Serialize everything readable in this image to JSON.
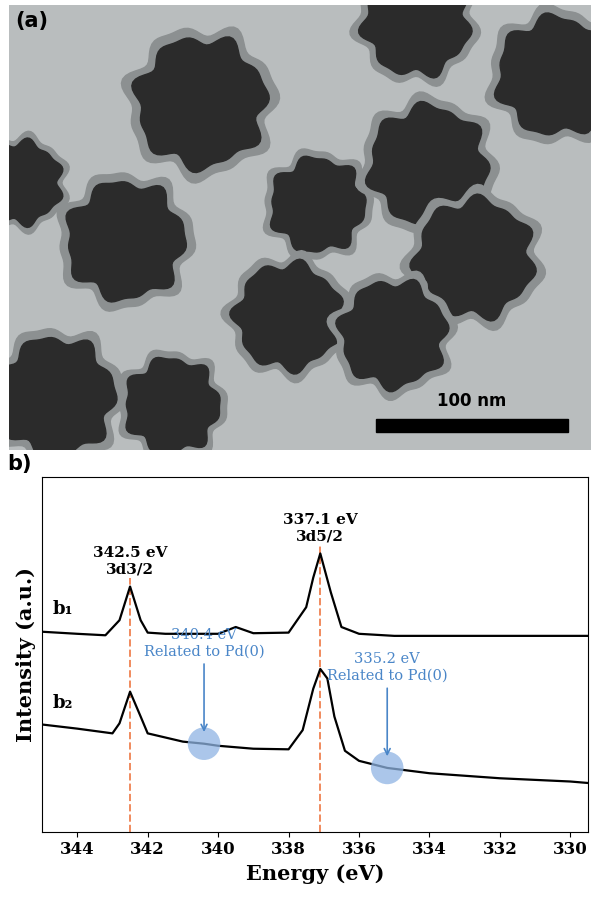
{
  "image_panel": {
    "label": "(a)",
    "scale_bar": "100 nm"
  },
  "chart_data": {
    "type": "line",
    "panel_label": "b)",
    "x_label": "Energy (eV)",
    "y_label": "Intensity (a.u.)",
    "xlim": [
      345,
      329.5
    ],
    "xticks": [
      344,
      342,
      340,
      338,
      336,
      334,
      332,
      330
    ],
    "ylim": [
      0,
      120
    ],
    "tick_labels": "x",
    "series": [
      {
        "name": "b₁",
        "color": "#000000",
        "x": [
          345,
          344,
          343.2,
          342.8,
          342.5,
          342.2,
          342,
          341.5,
          340,
          339.5,
          339,
          338,
          337.5,
          337.3,
          337.1,
          336.8,
          336.5,
          336,
          335,
          334,
          332,
          330,
          329.5
        ],
        "values": [
          67.7,
          67.0,
          66.5,
          71.6,
          83.0,
          71.6,
          67.4,
          67.0,
          67.0,
          69.3,
          67.2,
          67.4,
          76.0,
          86.0,
          94.2,
          81.0,
          69.3,
          67.0,
          66.3,
          66.3,
          66.3,
          66.3,
          66.3
        ]
      },
      {
        "name": "b₂",
        "color": "#000000",
        "x": [
          345,
          344,
          343,
          342.8,
          342.5,
          342.2,
          342,
          341,
          340.4,
          340,
          339,
          338,
          337.6,
          337.3,
          337.1,
          336.9,
          336.7,
          336.4,
          336,
          335.2,
          334,
          332,
          330,
          329.5
        ],
        "values": [
          36.3,
          34.9,
          33.3,
          36.7,
          47.4,
          39.0,
          33.3,
          30.5,
          29.8,
          29.1,
          28.1,
          27.9,
          34.4,
          48.4,
          55.1,
          51.9,
          39.0,
          27.4,
          24.0,
          21.6,
          19.8,
          18.1,
          17.0,
          16.5
        ]
      }
    ],
    "peak_lines": [
      {
        "x": 342.5,
        "label": "342.5 eV",
        "sublabel": "3d3/2"
      },
      {
        "x": 337.1,
        "label": "337.1 eV",
        "sublabel": "3d5/2"
      }
    ],
    "highlights": [
      {
        "x": 340.4,
        "series": "b₂",
        "label": "340.4 eV",
        "sublabel": "Related to Pd(0)"
      },
      {
        "x": 335.2,
        "series": "b₂",
        "label": "335.2 eV",
        "sublabel": "Related to Pd(0)"
      }
    ]
  }
}
